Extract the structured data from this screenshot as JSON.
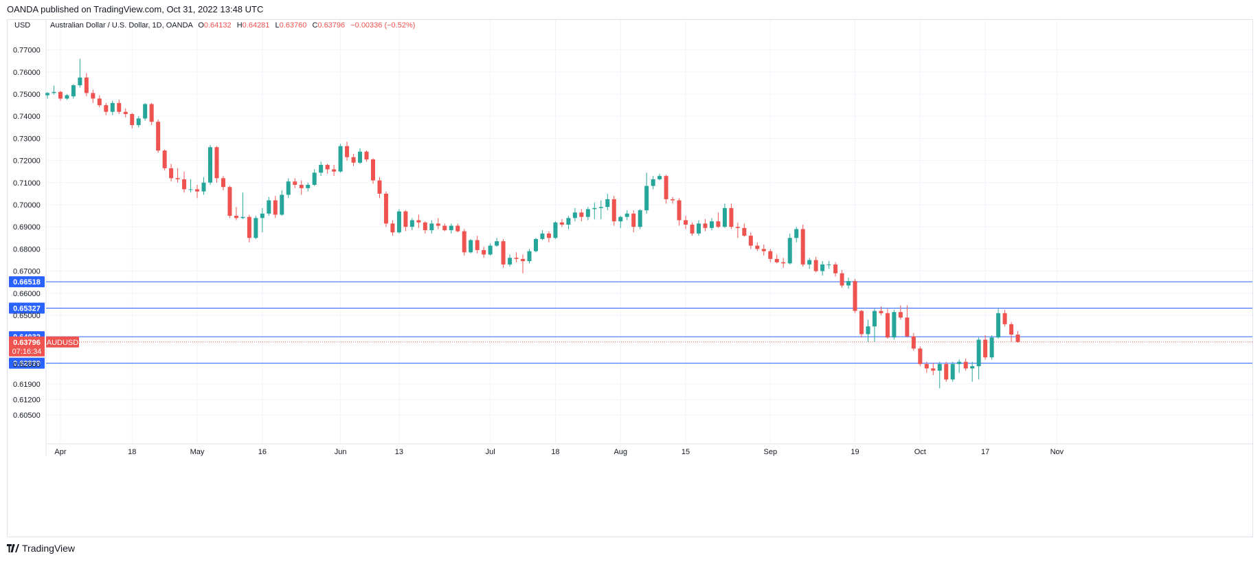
{
  "published_text": "OANDA published on TradingView.com, Oct 31, 2022 13:48 UTC",
  "footer_brand": "TradingView",
  "colors": {
    "up": "#26a69a",
    "down": "#ef5350",
    "grid": "#f0f3fa",
    "line": "#2962ff",
    "axis_text": "#131722"
  },
  "chart_data": {
    "type": "candlestick",
    "currency": "USD",
    "symbol_title": "Australian Dollar / U.S. Dollar, 1D, OANDA",
    "ohlc_header": {
      "O": "0.64132",
      "H": "0.64281",
      "L": "0.63760",
      "C": "0.63796",
      "change": "−0.00336 (−0.52%)"
    },
    "ylim": [
      0.6035,
      0.7825
    ],
    "y_ticks": [
      "0.77000",
      "0.76000",
      "0.75000",
      "0.74000",
      "0.73000",
      "0.72000",
      "0.71000",
      "0.70000",
      "0.69000",
      "0.68000",
      "0.67000",
      "0.66000",
      "0.65000",
      "0.62800",
      "0.61900",
      "0.61200",
      "0.60500"
    ],
    "x_ticks": [
      {
        "label": "Apr",
        "index": 2
      },
      {
        "label": "18",
        "index": 13
      },
      {
        "label": "May",
        "index": 23
      },
      {
        "label": "16",
        "index": 33
      },
      {
        "label": "Jun",
        "index": 45
      },
      {
        "label": "13",
        "index": 54
      },
      {
        "label": "Jul",
        "index": 68
      },
      {
        "label": "18",
        "index": 78
      },
      {
        "label": "Aug",
        "index": 88
      },
      {
        "label": "15",
        "index": 98
      },
      {
        "label": "Sep",
        "index": 111
      },
      {
        "label": "19",
        "index": 124
      },
      {
        "label": "Oct",
        "index": 134
      },
      {
        "label": "17",
        "index": 144
      },
      {
        "label": "Nov",
        "index": 155
      }
    ],
    "horizontal_lines": [
      "0.66518",
      "0.65327",
      "0.64032",
      "0.62839"
    ],
    "last_price": {
      "value": "0.63796",
      "label": "AUDUSD",
      "countdown": "07:16:34"
    },
    "grid": true,
    "candles": [
      [
        0.7495,
        0.751,
        0.748,
        0.7505
      ],
      [
        0.7505,
        0.7538,
        0.7498,
        0.751
      ],
      [
        0.751,
        0.7515,
        0.747,
        0.748
      ],
      [
        0.748,
        0.75,
        0.7475,
        0.7495
      ],
      [
        0.749,
        0.7545,
        0.748,
        0.754
      ],
      [
        0.754,
        0.766,
        0.753,
        0.7575
      ],
      [
        0.7575,
        0.7595,
        0.749,
        0.7505
      ],
      [
        0.7505,
        0.752,
        0.746,
        0.748
      ],
      [
        0.748,
        0.7495,
        0.744,
        0.745
      ],
      [
        0.745,
        0.746,
        0.7405,
        0.742
      ],
      [
        0.742,
        0.747,
        0.7405,
        0.746
      ],
      [
        0.746,
        0.7475,
        0.741,
        0.742
      ],
      [
        0.742,
        0.7435,
        0.7395,
        0.741
      ],
      [
        0.741,
        0.7415,
        0.7345,
        0.736
      ],
      [
        0.736,
        0.74,
        0.735,
        0.739
      ],
      [
        0.739,
        0.746,
        0.738,
        0.7455
      ],
      [
        0.7455,
        0.746,
        0.736,
        0.7375
      ],
      [
        0.7375,
        0.7385,
        0.7235,
        0.7245
      ],
      [
        0.7245,
        0.725,
        0.7155,
        0.7165
      ],
      [
        0.7165,
        0.7185,
        0.7105,
        0.712
      ],
      [
        0.712,
        0.7165,
        0.71,
        0.7115
      ],
      [
        0.7115,
        0.715,
        0.7055,
        0.707
      ],
      [
        0.707,
        0.7115,
        0.7055,
        0.707
      ],
      [
        0.707,
        0.709,
        0.703,
        0.706
      ],
      [
        0.706,
        0.7125,
        0.7045,
        0.71
      ],
      [
        0.71,
        0.727,
        0.709,
        0.726
      ],
      [
        0.726,
        0.7265,
        0.71,
        0.712
      ],
      [
        0.712,
        0.713,
        0.7065,
        0.708
      ],
      [
        0.708,
        0.7085,
        0.694,
        0.695
      ],
      [
        0.695,
        0.699,
        0.693,
        0.694
      ],
      [
        0.694,
        0.7055,
        0.6935,
        0.6945
      ],
      [
        0.6945,
        0.6955,
        0.683,
        0.685
      ],
      [
        0.685,
        0.695,
        0.6845,
        0.694
      ],
      [
        0.694,
        0.6985,
        0.6875,
        0.696
      ],
      [
        0.696,
        0.7035,
        0.695,
        0.702
      ],
      [
        0.702,
        0.704,
        0.694,
        0.6955
      ],
      [
        0.6955,
        0.7065,
        0.695,
        0.7045
      ],
      [
        0.7045,
        0.712,
        0.703,
        0.7105
      ],
      [
        0.7105,
        0.712,
        0.7075,
        0.709
      ],
      [
        0.709,
        0.711,
        0.7045,
        0.7075
      ],
      [
        0.7075,
        0.71,
        0.706,
        0.709
      ],
      [
        0.709,
        0.716,
        0.7085,
        0.7145
      ],
      [
        0.7145,
        0.7195,
        0.713,
        0.718
      ],
      [
        0.718,
        0.7185,
        0.714,
        0.716
      ],
      [
        0.716,
        0.718,
        0.713,
        0.715
      ],
      [
        0.715,
        0.7275,
        0.7145,
        0.7265
      ],
      [
        0.7265,
        0.7285,
        0.72,
        0.7215
      ],
      [
        0.7215,
        0.723,
        0.7175,
        0.719
      ],
      [
        0.719,
        0.7255,
        0.7185,
        0.724
      ],
      [
        0.724,
        0.7245,
        0.7195,
        0.7205
      ],
      [
        0.7205,
        0.721,
        0.7095,
        0.711
      ],
      [
        0.711,
        0.7125,
        0.703,
        0.705
      ],
      [
        0.705,
        0.706,
        0.69,
        0.6915
      ],
      [
        0.6915,
        0.693,
        0.686,
        0.6875
      ],
      [
        0.6875,
        0.698,
        0.687,
        0.697
      ],
      [
        0.697,
        0.6975,
        0.688,
        0.69
      ],
      [
        0.69,
        0.694,
        0.6885,
        0.693
      ],
      [
        0.693,
        0.6955,
        0.6895,
        0.692
      ],
      [
        0.692,
        0.6925,
        0.687,
        0.6885
      ],
      [
        0.6885,
        0.693,
        0.687,
        0.6915
      ],
      [
        0.6915,
        0.694,
        0.689,
        0.6905
      ],
      [
        0.6905,
        0.6915,
        0.688,
        0.6885
      ],
      [
        0.6885,
        0.6915,
        0.687,
        0.6905
      ],
      [
        0.6905,
        0.6915,
        0.6875,
        0.688
      ],
      [
        0.688,
        0.689,
        0.677,
        0.6785
      ],
      [
        0.6785,
        0.6845,
        0.678,
        0.684
      ],
      [
        0.684,
        0.686,
        0.678,
        0.6795
      ],
      [
        0.6795,
        0.681,
        0.676,
        0.6775
      ],
      [
        0.6775,
        0.6825,
        0.677,
        0.6815
      ],
      [
        0.6815,
        0.685,
        0.681,
        0.6835
      ],
      [
        0.6835,
        0.6845,
        0.6715,
        0.673
      ],
      [
        0.673,
        0.6775,
        0.672,
        0.676
      ],
      [
        0.676,
        0.6785,
        0.674,
        0.6755
      ],
      [
        0.6755,
        0.6775,
        0.669,
        0.6745
      ],
      [
        0.6745,
        0.68,
        0.6735,
        0.679
      ],
      [
        0.679,
        0.685,
        0.6785,
        0.6845
      ],
      [
        0.6845,
        0.6885,
        0.684,
        0.687
      ],
      [
        0.687,
        0.688,
        0.683,
        0.685
      ],
      [
        0.685,
        0.6925,
        0.6845,
        0.692
      ],
      [
        0.692,
        0.6935,
        0.69,
        0.691
      ],
      [
        0.691,
        0.695,
        0.689,
        0.694
      ],
      [
        0.694,
        0.6985,
        0.6925,
        0.6965
      ],
      [
        0.6965,
        0.698,
        0.6925,
        0.6945
      ],
      [
        0.6945,
        0.699,
        0.693,
        0.698
      ],
      [
        0.698,
        0.701,
        0.6935,
        0.6985
      ],
      [
        0.6985,
        0.702,
        0.6935,
        0.699
      ],
      [
        0.699,
        0.705,
        0.6975,
        0.7025
      ],
      [
        0.7025,
        0.704,
        0.6905,
        0.6925
      ],
      [
        0.6925,
        0.695,
        0.6895,
        0.6945
      ],
      [
        0.6945,
        0.6975,
        0.693,
        0.696
      ],
      [
        0.696,
        0.6975,
        0.6875,
        0.69
      ],
      [
        0.69,
        0.698,
        0.689,
        0.6975
      ],
      [
        0.6975,
        0.7145,
        0.696,
        0.7085
      ],
      [
        0.7085,
        0.713,
        0.707,
        0.7115
      ],
      [
        0.7115,
        0.714,
        0.711,
        0.713
      ],
      [
        0.713,
        0.7135,
        0.7005,
        0.7025
      ],
      [
        0.7025,
        0.7035,
        0.7005,
        0.702
      ],
      [
        0.702,
        0.703,
        0.6905,
        0.693
      ],
      [
        0.693,
        0.695,
        0.689,
        0.691
      ],
      [
        0.691,
        0.692,
        0.686,
        0.687
      ],
      [
        0.687,
        0.693,
        0.686,
        0.6915
      ],
      [
        0.6915,
        0.6935,
        0.688,
        0.6895
      ],
      [
        0.6895,
        0.694,
        0.6885,
        0.6925
      ],
      [
        0.6925,
        0.6965,
        0.6895,
        0.69
      ],
      [
        0.69,
        0.7005,
        0.6895,
        0.6985
      ],
      [
        0.6985,
        0.7005,
        0.689,
        0.69
      ],
      [
        0.69,
        0.692,
        0.685,
        0.6895
      ],
      [
        0.6895,
        0.6915,
        0.6855,
        0.686
      ],
      [
        0.686,
        0.6875,
        0.68,
        0.6815
      ],
      [
        0.6815,
        0.683,
        0.679,
        0.68
      ],
      [
        0.68,
        0.682,
        0.677,
        0.679
      ],
      [
        0.679,
        0.68,
        0.674,
        0.6755
      ],
      [
        0.6755,
        0.6775,
        0.6735,
        0.674
      ],
      [
        0.674,
        0.676,
        0.6715,
        0.6735
      ],
      [
        0.6735,
        0.687,
        0.673,
        0.685
      ],
      [
        0.685,
        0.69,
        0.683,
        0.689
      ],
      [
        0.689,
        0.691,
        0.672,
        0.673
      ],
      [
        0.673,
        0.676,
        0.671,
        0.675
      ],
      [
        0.675,
        0.6765,
        0.6695,
        0.67
      ],
      [
        0.67,
        0.6745,
        0.668,
        0.673
      ],
      [
        0.673,
        0.6745,
        0.671,
        0.673
      ],
      [
        0.673,
        0.674,
        0.6675,
        0.669
      ],
      [
        0.669,
        0.6705,
        0.6625,
        0.6635
      ],
      [
        0.6635,
        0.667,
        0.662,
        0.6655
      ],
      [
        0.6655,
        0.6665,
        0.651,
        0.652
      ],
      [
        0.652,
        0.6525,
        0.64,
        0.6415
      ],
      [
        0.6415,
        0.648,
        0.638,
        0.645
      ],
      [
        0.645,
        0.653,
        0.638,
        0.652
      ],
      [
        0.652,
        0.654,
        0.65,
        0.651
      ],
      [
        0.651,
        0.653,
        0.6395,
        0.64
      ],
      [
        0.64,
        0.6525,
        0.639,
        0.6515
      ],
      [
        0.6515,
        0.6545,
        0.648,
        0.649
      ],
      [
        0.649,
        0.6545,
        0.64,
        0.6405
      ],
      [
        0.6405,
        0.642,
        0.634,
        0.635
      ],
      [
        0.635,
        0.636,
        0.627,
        0.628
      ],
      [
        0.628,
        0.629,
        0.624,
        0.626
      ],
      [
        0.626,
        0.6285,
        0.623,
        0.625
      ],
      [
        0.625,
        0.629,
        0.617,
        0.628
      ],
      [
        0.628,
        0.629,
        0.62,
        0.621
      ],
      [
        0.621,
        0.629,
        0.62,
        0.628
      ],
      [
        0.628,
        0.63,
        0.624,
        0.629
      ],
      [
        0.629,
        0.6305,
        0.625,
        0.626
      ],
      [
        0.626,
        0.629,
        0.62,
        0.627
      ],
      [
        0.627,
        0.64,
        0.621,
        0.639
      ],
      [
        0.639,
        0.641,
        0.63,
        0.631
      ],
      [
        0.631,
        0.641,
        0.63,
        0.64
      ],
      [
        0.64,
        0.653,
        0.6395,
        0.651
      ],
      [
        0.651,
        0.6525,
        0.645,
        0.646
      ],
      [
        0.646,
        0.647,
        0.638,
        0.6413
      ],
      [
        0.6413,
        0.6428,
        0.6376,
        0.638
      ]
    ]
  }
}
